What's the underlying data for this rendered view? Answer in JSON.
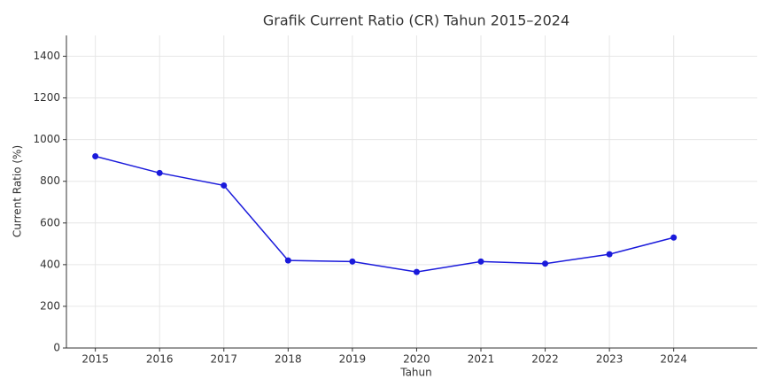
{
  "chart_data": {
    "type": "line",
    "title": "Grafik Current Ratio (CR) Tahun 2015–2024",
    "x_label": "Tahun",
    "y_label": "Current Ratio (%)",
    "x": [
      2015,
      2016,
      2017,
      2018,
      2019,
      2020,
      2021,
      2022,
      2023,
      2024
    ],
    "values": [
      920,
      840,
      780,
      420,
      415,
      365,
      415,
      405,
      450,
      530
    ],
    "color": "#1a1adb",
    "xlim": [
      2014.55,
      2025.3
    ],
    "xticks": [
      2015,
      2016,
      2017,
      2018,
      2019,
      2020,
      2021,
      2022,
      2023,
      2024
    ],
    "ylim": [
      0,
      1500
    ],
    "yticks": [
      0,
      200,
      400,
      600,
      800,
      1000,
      1200,
      1400
    ],
    "grid": true
  }
}
